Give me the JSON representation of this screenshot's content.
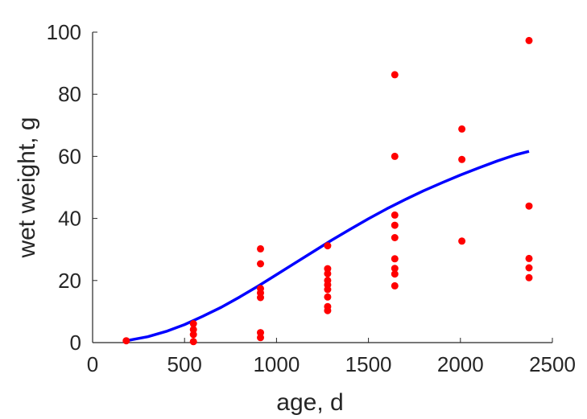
{
  "chart_data": {
    "type": "scatter",
    "title": "",
    "xlabel": "age, d",
    "ylabel": "wet weight, g",
    "xlim": [
      0,
      2500
    ],
    "ylim": [
      0,
      100
    ],
    "x_ticks": [
      "0",
      "500",
      "1000",
      "1500",
      "2000",
      "2500"
    ],
    "y_ticks": [
      "0",
      "20",
      "40",
      "60",
      "80",
      "100"
    ],
    "grid": false,
    "legend": "none",
    "series": [
      {
        "kind": "scatter",
        "color": "#ff0000",
        "points": [
          [
            183,
            0.6
          ],
          [
            548,
            0.3
          ],
          [
            548,
            2.6
          ],
          [
            548,
            4.2
          ],
          [
            548,
            6.1
          ],
          [
            913,
            1.6
          ],
          [
            913,
            3.2
          ],
          [
            913,
            14.5
          ],
          [
            913,
            16.0
          ],
          [
            913,
            17.4
          ],
          [
            913,
            25.4
          ],
          [
            913,
            30.2
          ],
          [
            1278,
            10.3
          ],
          [
            1278,
            11.6
          ],
          [
            1278,
            14.7
          ],
          [
            1278,
            17.1
          ],
          [
            1278,
            18.6
          ],
          [
            1278,
            20.0
          ],
          [
            1278,
            22.2
          ],
          [
            1278,
            23.8
          ],
          [
            1278,
            31.2
          ],
          [
            1643,
            18.3
          ],
          [
            1643,
            22.1
          ],
          [
            1643,
            23.9
          ],
          [
            1643,
            27.0
          ],
          [
            1643,
            33.8
          ],
          [
            1643,
            37.8
          ],
          [
            1643,
            41.1
          ],
          [
            1643,
            60.0
          ],
          [
            1643,
            86.3
          ],
          [
            2008,
            32.7
          ],
          [
            2008,
            59.0
          ],
          [
            2008,
            68.8
          ],
          [
            2373,
            20.9
          ],
          [
            2373,
            24.1
          ],
          [
            2373,
            27.1
          ],
          [
            2373,
            44.0
          ],
          [
            2373,
            97.3
          ]
        ]
      },
      {
        "kind": "line",
        "color": "#0000ff",
        "points": [
          [
            183,
            0.6
          ],
          [
            300,
            1.9
          ],
          [
            400,
            3.6
          ],
          [
            500,
            5.8
          ],
          [
            600,
            8.5
          ],
          [
            700,
            11.4
          ],
          [
            800,
            14.7
          ],
          [
            900,
            18.2
          ],
          [
            1000,
            21.9
          ],
          [
            1100,
            25.6
          ],
          [
            1200,
            29.3
          ],
          [
            1300,
            33.0
          ],
          [
            1400,
            36.5
          ],
          [
            1500,
            39.9
          ],
          [
            1600,
            43.1
          ],
          [
            1700,
            46.1
          ],
          [
            1800,
            48.9
          ],
          [
            1900,
            51.5
          ],
          [
            2000,
            54.0
          ],
          [
            2100,
            56.3
          ],
          [
            2200,
            58.5
          ],
          [
            2300,
            60.5
          ],
          [
            2373,
            61.6
          ]
        ]
      }
    ]
  }
}
